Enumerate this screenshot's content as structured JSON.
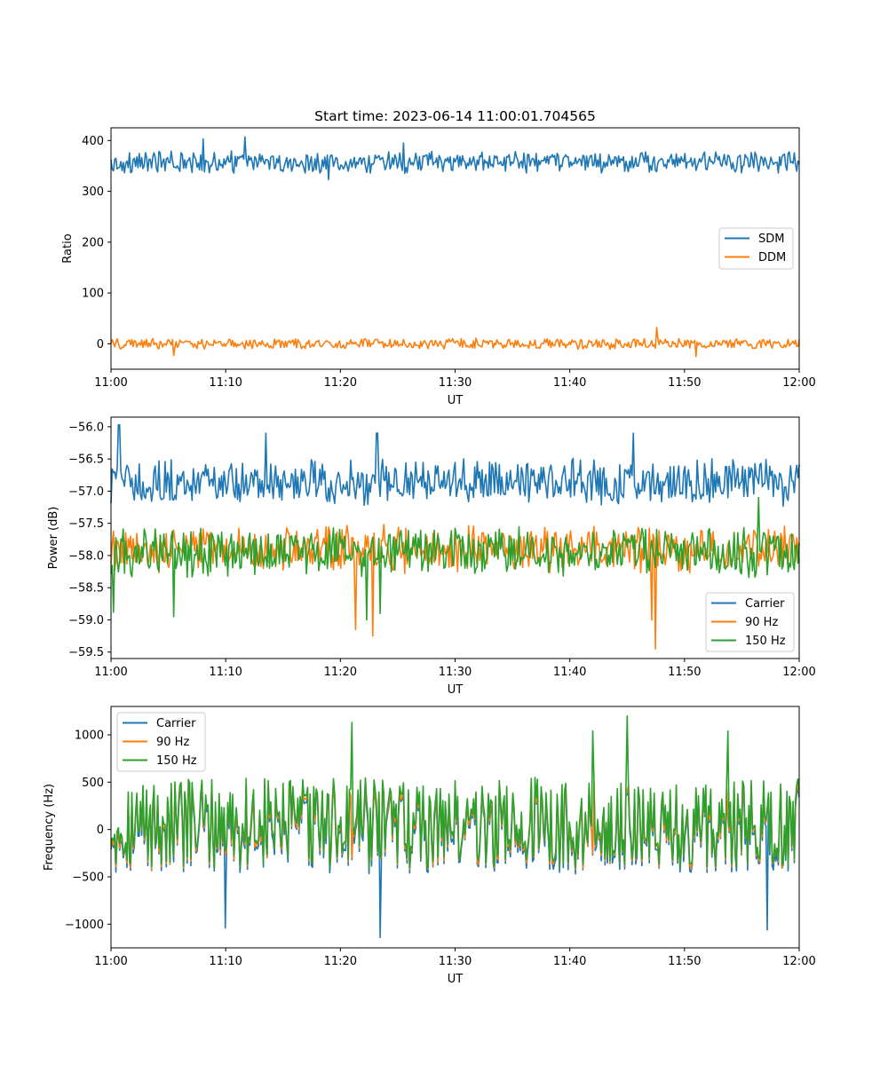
{
  "title": "Start time: 2023-06-14 11:00:01.704565",
  "colors": {
    "blue": "#1f77b4",
    "orange": "#ff7f0e",
    "green": "#2ca02c"
  },
  "chart_data": [
    {
      "type": "line",
      "title": "Start time: 2023-06-14 11:00:01.704565",
      "xlabel": "UT",
      "ylabel": "Ratio",
      "xlim": [
        "11:00",
        "12:00"
      ],
      "ylim": [
        -50,
        425
      ],
      "xticks": [
        "11:00",
        "11:10",
        "11:20",
        "11:30",
        "11:40",
        "11:50",
        "12:00"
      ],
      "yticks": [
        "0",
        "100",
        "200",
        "300",
        "400"
      ],
      "ytick_values": [
        0,
        100,
        200,
        300,
        400
      ],
      "legend": "center-right",
      "grid": false,
      "series": [
        {
          "name": "SDM",
          "color": "#1f77b4",
          "mean": 357,
          "amplitude": 18,
          "spikes": [
            [
              8,
              403
            ],
            [
              11.7,
              407
            ],
            [
              25.5,
              395
            ],
            [
              19,
              323
            ]
          ]
        },
        {
          "name": "DDM",
          "color": "#ff7f0e",
          "mean": 0,
          "amplitude": 9,
          "spikes": [
            [
              5.5,
              -23
            ],
            [
              47.6,
              32
            ],
            [
              51,
              -25
            ]
          ]
        }
      ]
    },
    {
      "type": "line",
      "xlabel": "UT",
      "ylabel": "Power (dB)",
      "xlim": [
        "11:00",
        "12:00"
      ],
      "ylim": [
        -59.6,
        -55.85
      ],
      "xticks": [
        "11:00",
        "11:10",
        "11:20",
        "11:30",
        "11:40",
        "11:50",
        "12:00"
      ],
      "yticks": [
        "−56.0",
        "−56.5",
        "−57.0",
        "−57.5",
        "−58.0",
        "−58.5",
        "−59.0",
        "−59.5"
      ],
      "ytick_values": [
        -56.0,
        -56.5,
        -57.0,
        -57.5,
        -58.0,
        -58.5,
        -59.0,
        -59.5
      ],
      "legend": "lower-right",
      "grid": false,
      "series": [
        {
          "name": "Carrier",
          "color": "#1f77b4",
          "mean": -56.85,
          "amplitude": 0.3,
          "spikes": [
            [
              0.7,
              -55.97
            ],
            [
              13.5,
              -56.1
            ],
            [
              23.2,
              -56.1
            ],
            [
              45.5,
              -56.1
            ]
          ]
        },
        {
          "name": "90 Hz",
          "color": "#ff7f0e",
          "mean": -57.9,
          "amplitude": 0.3,
          "spikes": [
            [
              22.8,
              -59.25
            ],
            [
              47.5,
              -59.45
            ],
            [
              47.1,
              -59.0
            ],
            [
              21.3,
              -59.15
            ]
          ]
        },
        {
          "name": "150 Hz",
          "color": "#2ca02c",
          "mean": -57.95,
          "amplitude": 0.32,
          "spikes": [
            [
              0.2,
              -58.88
            ],
            [
              5.5,
              -58.95
            ],
            [
              22.3,
              -59.0
            ],
            [
              23.5,
              -58.9
            ],
            [
              56.5,
              -57.1
            ]
          ]
        }
      ]
    },
    {
      "type": "line",
      "xlabel": "UT",
      "ylabel": "Frequency (Hz)",
      "xlim": [
        "11:00",
        "12:00"
      ],
      "ylim": [
        -1250,
        1300
      ],
      "xticks": [
        "11:00",
        "11:10",
        "11:20",
        "11:30",
        "11:40",
        "11:50",
        "12:00"
      ],
      "yticks": [
        "−1000",
        "−500",
        "0",
        "500",
        "1000"
      ],
      "ytick_values": [
        -1000,
        -500,
        0,
        500,
        1000
      ],
      "legend": "upper-left",
      "grid": false,
      "series": [
        {
          "name": "Carrier",
          "color": "#1f77b4",
          "mean": 0,
          "amplitude": 420,
          "spikes": [
            [
              23.5,
              -1140
            ],
            [
              57.2,
              -1060
            ],
            [
              10,
              -1040
            ]
          ]
        },
        {
          "name": "90 Hz",
          "color": "#ff7f0e",
          "mean": 40,
          "amplitude": 420,
          "spikes": []
        },
        {
          "name": "150 Hz",
          "color": "#2ca02c",
          "mean": 70,
          "amplitude": 430,
          "spikes": [
            [
              45,
              1200
            ],
            [
              21,
              1130
            ],
            [
              42,
              1040
            ],
            [
              53.8,
              1040
            ]
          ]
        }
      ]
    }
  ]
}
